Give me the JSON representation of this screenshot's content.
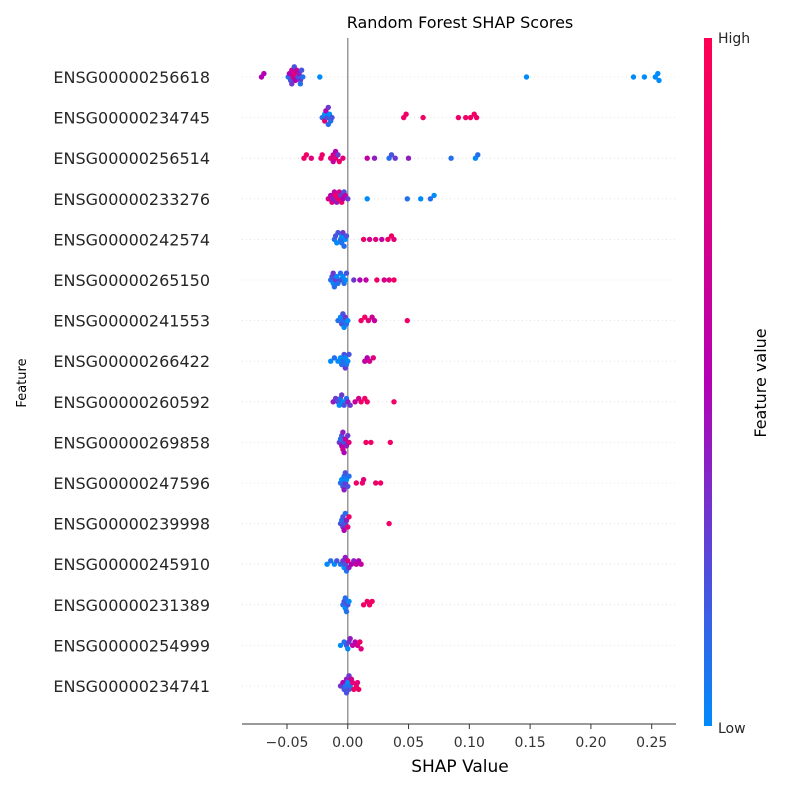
{
  "chart_data": {
    "type": "scatter",
    "title": "Random Forest SHAP Scores",
    "xlabel": "SHAP Value",
    "ylabel": "Feature",
    "xlim": [
      -0.087,
      0.27
    ],
    "xticks": [
      -0.05,
      0.0,
      0.05,
      0.1,
      0.15,
      0.2,
      0.25
    ],
    "xtick_labels": [
      "−0.05",
      "0.00",
      "0.05",
      "0.10",
      "0.15",
      "0.20",
      "0.25"
    ],
    "grid": false,
    "colorbar": {
      "label": "Feature value",
      "high_label": "High",
      "low_label": "Low",
      "low_color": "#008bfb",
      "mid_color": "#b400b4",
      "high_color": "#ff0052"
    },
    "features": [
      {
        "name": "ENSG00000256618",
        "points": [
          [
            -0.071,
            0.5
          ],
          [
            -0.069,
            0.5
          ],
          [
            -0.049,
            0.1
          ],
          [
            -0.047,
            0.2
          ],
          [
            -0.046,
            0.6
          ],
          [
            -0.045,
            0.7
          ],
          [
            -0.044,
            0.8
          ],
          [
            -0.043,
            0.5
          ],
          [
            -0.041,
            0.2
          ],
          [
            -0.04,
            0.4
          ],
          [
            -0.039,
            0.3
          ],
          [
            -0.038,
            0.2
          ],
          [
            -0.037,
            0.1
          ],
          [
            -0.048,
            0.5
          ],
          [
            -0.046,
            0.3
          ],
          [
            -0.044,
            0.2
          ],
          [
            -0.042,
            0.6
          ],
          [
            -0.039,
            0.1
          ],
          [
            -0.023,
            0.0
          ],
          [
            0.147,
            0.0
          ],
          [
            0.235,
            0.0
          ],
          [
            0.244,
            0.0
          ],
          [
            0.253,
            0.0
          ],
          [
            0.255,
            0.0
          ],
          [
            0.256,
            0.0
          ]
        ]
      },
      {
        "name": "ENSG00000234745",
        "points": [
          [
            -0.021,
            0.1
          ],
          [
            -0.019,
            0.0
          ],
          [
            -0.018,
            0.5
          ],
          [
            -0.017,
            0.2
          ],
          [
            -0.016,
            0.1
          ],
          [
            -0.015,
            0.0
          ],
          [
            -0.014,
            0.1
          ],
          [
            -0.013,
            0.2
          ],
          [
            -0.019,
            0.8
          ],
          [
            -0.016,
            0.3
          ],
          [
            0.046,
            0.9
          ],
          [
            0.048,
            0.9
          ],
          [
            0.062,
            0.9
          ],
          [
            0.091,
            0.9
          ],
          [
            0.097,
            0.9
          ],
          [
            0.101,
            0.9
          ],
          [
            0.104,
            0.9
          ],
          [
            0.106,
            0.9
          ]
        ]
      },
      {
        "name": "ENSG00000256514",
        "points": [
          [
            -0.036,
            0.9
          ],
          [
            -0.034,
            0.9
          ],
          [
            -0.03,
            0.8
          ],
          [
            -0.022,
            0.9
          ],
          [
            -0.021,
            0.9
          ],
          [
            -0.014,
            0.8
          ],
          [
            -0.012,
            0.7
          ],
          [
            -0.01,
            0.8
          ],
          [
            -0.007,
            0.9
          ],
          [
            -0.004,
            0.8
          ],
          [
            -0.012,
            0.6
          ],
          [
            -0.01,
            0.5
          ],
          [
            -0.008,
            0.3
          ],
          [
            0.016,
            0.6
          ],
          [
            0.022,
            0.4
          ],
          [
            0.034,
            0.1
          ],
          [
            0.036,
            0.2
          ],
          [
            0.039,
            0.3
          ],
          [
            0.05,
            0.4
          ],
          [
            0.085,
            0.1
          ],
          [
            0.105,
            0.0
          ],
          [
            0.107,
            0.1
          ]
        ]
      },
      {
        "name": "ENSG00000233276",
        "points": [
          [
            -0.016,
            0.7
          ],
          [
            -0.014,
            0.5
          ],
          [
            -0.013,
            0.8
          ],
          [
            -0.011,
            0.6
          ],
          [
            -0.009,
            0.4
          ],
          [
            -0.008,
            0.9
          ],
          [
            -0.007,
            0.7
          ],
          [
            -0.006,
            0.3
          ],
          [
            -0.005,
            0.9
          ],
          [
            -0.004,
            0.5
          ],
          [
            -0.003,
            0.2
          ],
          [
            -0.002,
            0.6
          ],
          [
            0.0,
            0.3
          ],
          [
            -0.01,
            0.9
          ],
          [
            -0.012,
            0.4
          ],
          [
            0.016,
            0.0
          ],
          [
            0.049,
            0.1
          ],
          [
            0.06,
            0.0
          ],
          [
            0.068,
            0.1
          ],
          [
            0.071,
            0.0
          ]
        ]
      },
      {
        "name": "ENSG00000242574",
        "points": [
          [
            -0.011,
            0.1
          ],
          [
            -0.009,
            0.0
          ],
          [
            -0.008,
            0.2
          ],
          [
            -0.006,
            0.1
          ],
          [
            -0.005,
            0.0
          ],
          [
            -0.004,
            0.3
          ],
          [
            -0.003,
            0.1
          ],
          [
            -0.002,
            0.0
          ],
          [
            -0.001,
            0.2
          ],
          [
            -0.01,
            0.2
          ],
          [
            -0.005,
            0.1
          ],
          [
            0.013,
            0.9
          ],
          [
            0.018,
            0.7
          ],
          [
            0.023,
            0.8
          ],
          [
            0.028,
            0.6
          ],
          [
            0.033,
            0.9
          ],
          [
            0.036,
            0.9
          ],
          [
            0.038,
            0.8
          ]
        ]
      },
      {
        "name": "ENSG00000265150",
        "points": [
          [
            -0.014,
            0.1
          ],
          [
            -0.013,
            0.2
          ],
          [
            -0.012,
            0.0
          ],
          [
            -0.011,
            0.1
          ],
          [
            -0.01,
            0.3
          ],
          [
            -0.009,
            0.0
          ],
          [
            -0.008,
            0.1
          ],
          [
            -0.006,
            0.2
          ],
          [
            -0.004,
            0.0
          ],
          [
            -0.003,
            0.1
          ],
          [
            -0.002,
            0.0
          ],
          [
            -0.001,
            0.2
          ],
          [
            -0.012,
            0.3
          ],
          [
            -0.006,
            0.1
          ],
          [
            0.005,
            0.3
          ],
          [
            0.01,
            0.5
          ],
          [
            0.015,
            0.6
          ],
          [
            0.024,
            0.9
          ],
          [
            0.03,
            0.7
          ],
          [
            0.034,
            0.8
          ],
          [
            0.038,
            0.9
          ]
        ]
      },
      {
        "name": "ENSG00000241553",
        "points": [
          [
            -0.008,
            0.1
          ],
          [
            -0.006,
            0.0
          ],
          [
            -0.005,
            0.2
          ],
          [
            -0.004,
            0.1
          ],
          [
            -0.003,
            0.0
          ],
          [
            -0.002,
            0.3
          ],
          [
            -0.001,
            0.1
          ],
          [
            0.0,
            0.0
          ],
          [
            -0.004,
            0.2
          ],
          [
            0.011,
            0.9
          ],
          [
            0.014,
            0.9
          ],
          [
            0.017,
            0.8
          ],
          [
            0.02,
            0.7
          ],
          [
            0.022,
            0.6
          ],
          [
            0.049,
            0.9
          ]
        ]
      },
      {
        "name": "ENSG00000266422",
        "points": [
          [
            -0.014,
            0.0
          ],
          [
            -0.011,
            0.1
          ],
          [
            -0.008,
            0.0
          ],
          [
            -0.005,
            0.1
          ],
          [
            -0.003,
            0.2
          ],
          [
            -0.002,
            0.0
          ],
          [
            -0.001,
            0.1
          ],
          [
            0.0,
            0.0
          ],
          [
            0.001,
            0.2
          ],
          [
            -0.004,
            0.1
          ],
          [
            -0.006,
            0.0
          ],
          [
            -0.002,
            0.3
          ],
          [
            0.014,
            0.6
          ],
          [
            0.016,
            0.5
          ],
          [
            0.018,
            0.7
          ],
          [
            0.021,
            0.8
          ]
        ]
      },
      {
        "name": "ENSG00000260592",
        "points": [
          [
            -0.012,
            0.4
          ],
          [
            -0.01,
            0.3
          ],
          [
            -0.008,
            0.2
          ],
          [
            -0.006,
            0.1
          ],
          [
            -0.005,
            0.3
          ],
          [
            -0.003,
            0.2
          ],
          [
            -0.001,
            0.1
          ],
          [
            0.0,
            0.4
          ],
          [
            0.002,
            0.3
          ],
          [
            -0.007,
            0.0
          ],
          [
            -0.004,
            0.0
          ],
          [
            0.006,
            0.6
          ],
          [
            0.009,
            0.7
          ],
          [
            0.011,
            0.9
          ],
          [
            0.014,
            0.9
          ],
          [
            0.016,
            0.9
          ],
          [
            0.038,
            0.9
          ]
        ]
      },
      {
        "name": "ENSG00000269858",
        "points": [
          [
            -0.007,
            0.3
          ],
          [
            -0.006,
            0.1
          ],
          [
            -0.005,
            0.5
          ],
          [
            -0.004,
            0.7
          ],
          [
            -0.003,
            0.2
          ],
          [
            -0.002,
            0.6
          ],
          [
            -0.001,
            0.4
          ],
          [
            0.0,
            0.3
          ],
          [
            0.001,
            0.8
          ],
          [
            -0.005,
            0.2
          ],
          [
            -0.004,
            0.4
          ],
          [
            -0.003,
            0.5
          ],
          [
            0.015,
            0.9
          ],
          [
            0.019,
            0.9
          ],
          [
            0.035,
            0.9
          ]
        ]
      },
      {
        "name": "ENSG00000247596",
        "points": [
          [
            -0.006,
            0.1
          ],
          [
            -0.005,
            0.0
          ],
          [
            -0.004,
            0.2
          ],
          [
            -0.003,
            0.1
          ],
          [
            -0.002,
            0.3
          ],
          [
            -0.001,
            0.0
          ],
          [
            0.0,
            0.2
          ],
          [
            0.001,
            0.1
          ],
          [
            -0.003,
            0.4
          ],
          [
            -0.002,
            0.2
          ],
          [
            0.007,
            0.9
          ],
          [
            0.012,
            0.9
          ],
          [
            0.013,
            0.8
          ],
          [
            0.023,
            0.9
          ],
          [
            0.027,
            0.9
          ]
        ]
      },
      {
        "name": "ENSG00000239998",
        "points": [
          [
            -0.006,
            0.2
          ],
          [
            -0.005,
            0.1
          ],
          [
            -0.004,
            0.3
          ],
          [
            -0.003,
            0.5
          ],
          [
            -0.002,
            0.2
          ],
          [
            -0.001,
            0.4
          ],
          [
            0.0,
            0.8
          ],
          [
            0.001,
            0.9
          ],
          [
            -0.004,
            0.2
          ],
          [
            -0.002,
            0.1
          ],
          [
            0.034,
            0.9
          ]
        ]
      },
      {
        "name": "ENSG00000245910",
        "points": [
          [
            -0.017,
            0.0
          ],
          [
            -0.014,
            0.1
          ],
          [
            -0.011,
            0.0
          ],
          [
            -0.009,
            0.2
          ],
          [
            -0.006,
            0.1
          ],
          [
            -0.004,
            0.3
          ],
          [
            -0.003,
            0.0
          ],
          [
            -0.002,
            0.2
          ],
          [
            -0.001,
            0.1
          ],
          [
            0.001,
            0.4
          ],
          [
            0.003,
            0.5
          ],
          [
            0.005,
            0.4
          ],
          [
            0.007,
            0.6
          ],
          [
            0.009,
            0.5
          ],
          [
            0.011,
            0.6
          ],
          [
            -0.002,
            0.4
          ],
          [
            0.0,
            0.8
          ]
        ]
      },
      {
        "name": "ENSG00000231389",
        "points": [
          [
            -0.004,
            0.1
          ],
          [
            -0.003,
            0.2
          ],
          [
            -0.002,
            0.0
          ],
          [
            -0.001,
            0.1
          ],
          [
            0.0,
            0.2
          ],
          [
            0.001,
            0.0
          ],
          [
            -0.002,
            0.1
          ],
          [
            0.013,
            0.9
          ],
          [
            0.016,
            0.9
          ],
          [
            0.018,
            0.9
          ],
          [
            0.02,
            0.9
          ]
        ]
      },
      {
        "name": "ENSG00000254999",
        "points": [
          [
            -0.006,
            0.0
          ],
          [
            -0.003,
            0.1
          ],
          [
            -0.001,
            0.2
          ],
          [
            0.0,
            0.0
          ],
          [
            0.001,
            0.3
          ],
          [
            0.002,
            0.4
          ],
          [
            0.004,
            0.6
          ],
          [
            0.006,
            0.5
          ],
          [
            0.008,
            0.7
          ],
          [
            0.01,
            0.9
          ],
          [
            0.011,
            0.8
          ]
        ]
      },
      {
        "name": "ENSG00000234741",
        "points": [
          [
            -0.006,
            0.3
          ],
          [
            -0.004,
            0.5
          ],
          [
            -0.003,
            0.2
          ],
          [
            -0.002,
            0.1
          ],
          [
            -0.001,
            0.4
          ],
          [
            0.0,
            0.0
          ],
          [
            0.001,
            0.2
          ],
          [
            0.002,
            0.1
          ],
          [
            0.003,
            0.7
          ],
          [
            0.004,
            0.8
          ],
          [
            0.005,
            0.9
          ],
          [
            0.007,
            0.9
          ],
          [
            0.008,
            0.8
          ],
          [
            0.009,
            0.9
          ],
          [
            -0.001,
            0.2
          ],
          [
            0.001,
            0.3
          ]
        ]
      }
    ]
  }
}
